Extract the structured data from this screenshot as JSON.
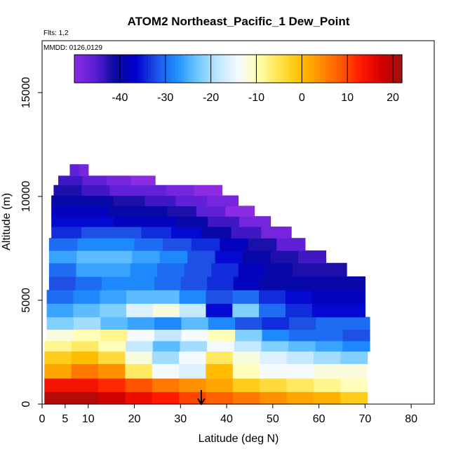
{
  "chart_data": {
    "type": "heatmap",
    "title": "ATOM2 Northeast_Pacific_1 Dew_Point",
    "annotations": {
      "flights": "Flts: 1,2",
      "dates": "MMDD: 0126,0129"
    },
    "xlabel": "Latitude (deg N)",
    "ylabel": "Altitude (m)",
    "xlim": [
      0,
      85
    ],
    "ylim": [
      0,
      17500
    ],
    "x_ticks": [
      0,
      5,
      10,
      20,
      30,
      40,
      50,
      60,
      70,
      80
    ],
    "y_ticks": [
      0,
      5000,
      10000,
      15000
    ],
    "colorbar": {
      "range": [
        -50,
        22
      ],
      "ticks": [
        -40,
        -30,
        -20,
        -10,
        0,
        10,
        20
      ],
      "colors": [
        "#8B2BE2",
        "#5A1FD6",
        "#0A0A9E",
        "#0000CD",
        "#1E50E6",
        "#1E90FF",
        "#6EC8FF",
        "#BFE6FF",
        "#F5FAFF",
        "#FFFFB0",
        "#FFE34D",
        "#FFC200",
        "#FF9000",
        "#FF5A00",
        "#FF1A00",
        "#D40000",
        "#9E1010"
      ]
    },
    "arrow_latitude": 34.5,
    "altitude_bands": [
      {
        "alt": 300,
        "x0": 0.5,
        "x1": 70.5,
        "values": [
          20,
          20,
          18,
          15,
          13,
          10,
          8,
          6,
          4,
          2,
          1,
          -2
        ]
      },
      {
        "alt": 900,
        "x0": 0.5,
        "x1": 70.5,
        "values": [
          14,
          14,
          12,
          9,
          6,
          4,
          2,
          -2,
          -4,
          -6,
          -8,
          -10
        ]
      },
      {
        "alt": 1600,
        "x0": 0.5,
        "x1": 70.5,
        "values": [
          2,
          6,
          4,
          -6,
          -14,
          -16,
          0,
          -10,
          -14,
          -14,
          -12,
          -12
        ]
      },
      {
        "alt": 2300,
        "x0": 0.5,
        "x1": 70.5,
        "values": [
          -2,
          0,
          -4,
          -12,
          -20,
          -14,
          -6,
          -12,
          -16,
          -18,
          -20,
          -22
        ]
      },
      {
        "alt": 2800,
        "x0": 0.5,
        "x1": 71,
        "values": [
          -8,
          -6,
          -10,
          -18,
          -24,
          -20,
          -14,
          -18,
          -22,
          -24,
          -26,
          -28
        ]
      },
      {
        "alt": 3300,
        "x0": 1,
        "x1": 71,
        "values": [
          -12,
          -10,
          -8,
          -14,
          -18,
          -14,
          -10,
          -22,
          -28,
          -30,
          -30,
          -32
        ]
      },
      {
        "alt": 3900,
        "x0": 1,
        "x1": 71,
        "values": [
          -22,
          -20,
          -24,
          -26,
          -28,
          -24,
          -28,
          -32,
          -34,
          -32,
          -30,
          -30
        ]
      },
      {
        "alt": 4500,
        "x0": 1,
        "x1": 70,
        "values": [
          -26,
          -24,
          -22,
          -16,
          -12,
          -18,
          -36,
          -22,
          -30,
          -34,
          -36,
          -36
        ]
      },
      {
        "alt": 5200,
        "x0": 1,
        "x1": 70,
        "values": [
          -30,
          -28,
          -26,
          -24,
          -24,
          -28,
          -32,
          -30,
          -34,
          -36,
          -38,
          -38
        ]
      },
      {
        "alt": 5800,
        "x0": 1.5,
        "x1": 70,
        "values": [
          -32,
          -30,
          -28,
          -28,
          -30,
          -32,
          -34,
          -38,
          -40,
          -40,
          -40,
          -40
        ]
      },
      {
        "alt": 6500,
        "x0": 1.5,
        "x1": 66,
        "values": [
          -30,
          -26,
          -26,
          -28,
          -30,
          -32,
          -34,
          -38,
          -40,
          -42,
          -42
        ]
      },
      {
        "alt": 7100,
        "x0": 1.5,
        "x1": 61.5,
        "values": [
          -26,
          -24,
          -24,
          -26,
          -28,
          -32,
          -36,
          -40,
          -42,
          -44
        ]
      },
      {
        "alt": 7700,
        "x0": 1.5,
        "x1": 57,
        "values": [
          -30,
          -28,
          -28,
          -30,
          -32,
          -34,
          -38,
          -42,
          -46
        ]
      },
      {
        "alt": 8300,
        "x0": 2,
        "x1": 54,
        "values": [
          -34,
          -32,
          -32,
          -34,
          -36,
          -40,
          -44,
          -48
        ]
      },
      {
        "alt": 8800,
        "x0": 2,
        "x1": 49.5,
        "values": [
          -36,
          -36,
          -38,
          -38,
          -40,
          -44,
          -48
        ]
      },
      {
        "alt": 9300,
        "x0": 2,
        "x1": 46,
        "values": [
          -38,
          -38,
          -40,
          -40,
          -42,
          -46,
          -50
        ]
      },
      {
        "alt": 9800,
        "x0": 2,
        "x1": 42.5,
        "values": [
          -40,
          -40,
          -42,
          -44,
          -46,
          -48
        ]
      },
      {
        "alt": 10300,
        "x0": 2.5,
        "x1": 39,
        "values": [
          -42,
          -44,
          -46,
          -46,
          -48,
          -50
        ]
      },
      {
        "alt": 10800,
        "x0": 3.5,
        "x1": 24.5,
        "values": [
          -44,
          -46,
          -48,
          -50
        ]
      },
      {
        "alt": 11200,
        "x0": 6,
        "x1": 10,
        "values": [
          -46,
          -48
        ]
      }
    ]
  }
}
